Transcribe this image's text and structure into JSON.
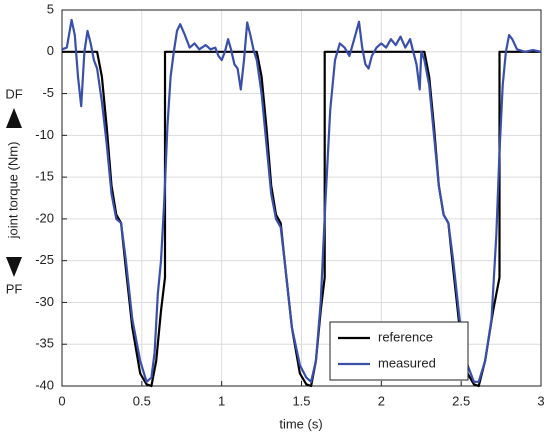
{
  "chart_data": {
    "type": "line",
    "xlabel": "time (s)",
    "ylabel": "joint torque (Nm)",
    "annotations": [
      "DF",
      "PF"
    ],
    "xlim": [
      0,
      3
    ],
    "xticks": [
      0,
      0.5,
      1,
      1.5,
      2,
      2.5,
      3
    ],
    "ylim": [
      -40,
      5
    ],
    "yticks": [
      5,
      0,
      -5,
      -10,
      -15,
      -20,
      -25,
      -30,
      -35,
      -40
    ],
    "grid": true,
    "legend": "lower right",
    "series": [
      {
        "name": "reference",
        "color": "#000000",
        "x": [
          0,
          0.22,
          0.25,
          0.28,
          0.31,
          0.34,
          0.37,
          0.4,
          0.44,
          0.49,
          0.53,
          0.56,
          0.59,
          0.62,
          0.645,
          0.645,
          1.22,
          1.25,
          1.28,
          1.31,
          1.34,
          1.37,
          1.4,
          1.44,
          1.49,
          1.53,
          1.56,
          1.59,
          1.62,
          1.645,
          1.645,
          2.27,
          2.3,
          2.33,
          2.36,
          2.39,
          2.42,
          2.45,
          2.49,
          2.54,
          2.58,
          2.61,
          2.65,
          2.7,
          2.74,
          2.74,
          3
        ],
        "values": [
          0,
          0,
          -3,
          -9,
          -16,
          -19.5,
          -20.5,
          -26,
          -33,
          -38.5,
          -39.8,
          -40,
          -37,
          -31,
          -27,
          0,
          0,
          -3,
          -9,
          -16,
          -19.5,
          -20.5,
          -26,
          -33,
          -38.5,
          -39.8,
          -40,
          -37,
          -31,
          -27,
          0,
          0,
          -3,
          -9,
          -16,
          -19.5,
          -20.5,
          -26,
          -33,
          -38.5,
          -39.8,
          -40,
          -37,
          -31,
          -27,
          0,
          0
        ]
      },
      {
        "name": "measured",
        "color": "#3a4fa8",
        "x": [
          0,
          0.03,
          0.06,
          0.08,
          0.1,
          0.12,
          0.14,
          0.16,
          0.18,
          0.2,
          0.22,
          0.25,
          0.28,
          0.31,
          0.34,
          0.37,
          0.4,
          0.44,
          0.49,
          0.53,
          0.56,
          0.58,
          0.6,
          0.62,
          0.64,
          0.66,
          0.68,
          0.7,
          0.72,
          0.74,
          0.77,
          0.8,
          0.83,
          0.86,
          0.9,
          0.93,
          0.96,
          0.98,
          1.0,
          1.02,
          1.04,
          1.06,
          1.08,
          1.1,
          1.12,
          1.14,
          1.16,
          1.18,
          1.2,
          1.22,
          1.25,
          1.28,
          1.31,
          1.34,
          1.37,
          1.4,
          1.44,
          1.49,
          1.53,
          1.56,
          1.59,
          1.62,
          1.65,
          1.68,
          1.71,
          1.74,
          1.77,
          1.8,
          1.83,
          1.86,
          1.88,
          1.9,
          1.92,
          1.94,
          1.97,
          2.0,
          2.03,
          2.06,
          2.09,
          2.12,
          2.15,
          2.18,
          2.2,
          2.22,
          2.24,
          2.25,
          2.27,
          2.3,
          2.33,
          2.36,
          2.39,
          2.42,
          2.45,
          2.49,
          2.54,
          2.58,
          2.61,
          2.65,
          2.69,
          2.72,
          2.74,
          2.76,
          2.78,
          2.8,
          2.82,
          2.85,
          2.9,
          2.95,
          3
        ],
        "values": [
          0.3,
          0.5,
          3.8,
          2,
          -3,
          -6.5,
          0,
          2.5,
          1,
          -1,
          -2,
          -6,
          -11,
          -17,
          -20,
          -20.5,
          -25,
          -32,
          -37,
          -39.5,
          -39,
          -36,
          -29,
          -25,
          -18,
          -9,
          -3,
          0,
          2.5,
          3.3,
          2,
          0.5,
          1,
          0.3,
          0.8,
          0.3,
          0.5,
          -0.5,
          -1,
          0,
          1.5,
          0.2,
          -1.5,
          -2,
          -4.5,
          -1,
          3.5,
          2,
          0.2,
          -1,
          -5,
          -11,
          -17,
          -20,
          -21,
          -26,
          -33,
          -37.5,
          -39,
          -39.5,
          -37,
          -30,
          -18,
          -7,
          -1,
          1,
          0.5,
          -0.5,
          1.5,
          3.6,
          0.5,
          -1.5,
          -2,
          -0.5,
          0.5,
          1,
          0.5,
          1.5,
          0.8,
          1.8,
          0.5,
          1.5,
          0,
          -1.5,
          -4.5,
          0,
          -1,
          -4,
          -10,
          -16,
          -19.5,
          -20.5,
          -25,
          -32,
          -37.5,
          -39.5,
          -39.5,
          -37,
          -32,
          -22,
          -12,
          -4,
          0,
          2,
          1.5,
          0.3,
          0,
          0.2,
          0
        ]
      }
    ]
  }
}
